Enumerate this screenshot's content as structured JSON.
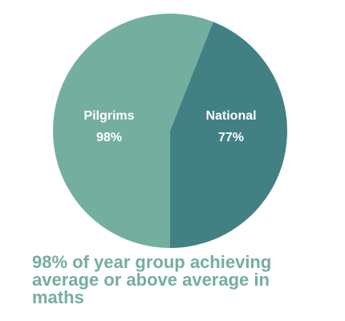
{
  "chart_data": {
    "type": "pie",
    "title": "98% of year group achieving average or above average in maths",
    "categories": [
      "Pilgrims",
      "National"
    ],
    "values": [
      98,
      77
    ],
    "value_labels": [
      "98%",
      "77%"
    ],
    "colors": [
      "#74ae9f",
      "#418183"
    ]
  }
}
